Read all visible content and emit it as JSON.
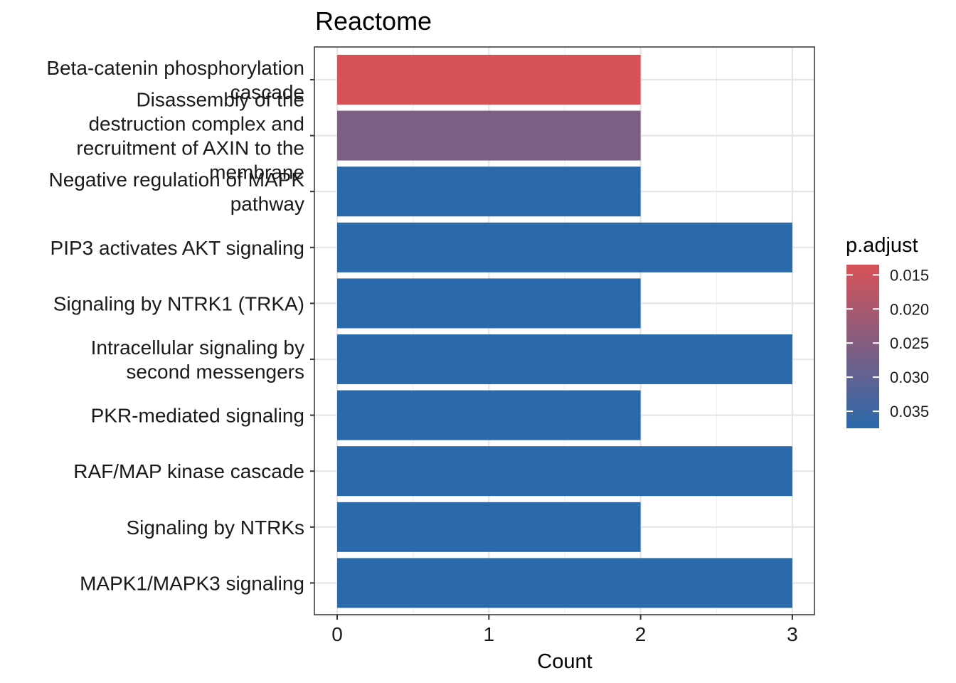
{
  "chart_data": {
    "type": "bar",
    "orientation": "horizontal",
    "title": "Reactome",
    "xlabel": "Count",
    "ylabel": "",
    "xlim": [
      0,
      3
    ],
    "xticks": [
      0,
      1,
      2,
      3
    ],
    "grid": true,
    "categories": [
      "Beta-catenin phosphorylation cascade",
      "Disassembly of the destruction complex and recruitment of AXIN to the membrane",
      "Negative regulation of MAPK pathway",
      "PIP3 activates AKT signaling",
      "Signaling by NTRK1 (TRKA)",
      "Intracellular signaling by second messengers",
      "PKR-mediated signaling",
      "RAF/MAP kinase cascade",
      "Signaling by NTRKs",
      "MAPK1/MAPK3 signaling"
    ],
    "category_lines": [
      [
        "Beta-catenin phosphorylation",
        "cascade"
      ],
      [
        "Disassembly of the",
        "destruction complex and",
        "recruitment of AXIN to the",
        "membrane"
      ],
      [
        "Negative regulation of MAPK",
        "pathway"
      ],
      [
        "PIP3 activates AKT signaling"
      ],
      [
        "Signaling by NTRK1 (TRKA)"
      ],
      [
        "Intracellular signaling by",
        "second messengers"
      ],
      [
        "PKR-mediated signaling"
      ],
      [
        "RAF/MAP kinase cascade"
      ],
      [
        "Signaling by NTRKs"
      ],
      [
        "MAPK1/MAPK3 signaling"
      ]
    ],
    "values": [
      2,
      2,
      2,
      3,
      2,
      3,
      2,
      3,
      2,
      3
    ],
    "p_adjust": [
      0.0135,
      0.026,
      0.0375,
      0.0375,
      0.0375,
      0.0375,
      0.0375,
      0.0375,
      0.0375,
      0.0375
    ],
    "color_scale": {
      "name": "p.adjust",
      "low_color": "#d75257",
      "high_color": "#2a6aab",
      "range": [
        0.0135,
        0.0375
      ],
      "ticks": [
        0.015,
        0.02,
        0.025,
        0.03,
        0.035
      ],
      "tick_labels": [
        "0.015",
        "0.020",
        "0.025",
        "0.030",
        "0.035"
      ]
    },
    "legend_position": "right"
  }
}
